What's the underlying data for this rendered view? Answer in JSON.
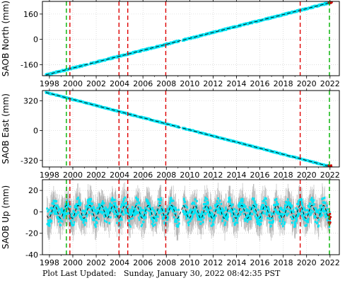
{
  "footer": {
    "label": "Plot Last Updated:",
    "value": "Sunday, January 30, 2022 08:42:35 PST"
  },
  "chart_data": [
    {
      "type": "scatter",
      "ylabel": "SAOB North (mm)",
      "xlim": [
        1997.4,
        2022.8
      ],
      "ylim": [
        -230,
        240
      ],
      "yticks": [
        -160,
        0,
        160
      ],
      "xticks": [
        1998,
        2000,
        2002,
        2004,
        2006,
        2008,
        2010,
        2012,
        2014,
        2016,
        2018,
        2020,
        2022
      ],
      "trend": [
        [
          1997.7,
          -225
        ],
        [
          2022.0,
          232
        ]
      ],
      "gaps": [
        [
          2001.3,
          2001.5
        ],
        [
          2009.1,
          2009.4
        ]
      ],
      "scatter_half_width": 5,
      "green_lines": [
        1999.45,
        2021.95
      ],
      "red_lines": [
        1999.75,
        2003.95,
        2004.7,
        2007.95,
        2019.45
      ],
      "grid": true
    },
    {
      "type": "scatter",
      "ylabel": "SAOB East (mm)",
      "xlim": [
        1997.4,
        2022.8
      ],
      "ylim": [
        -390,
        430
      ],
      "yticks": [
        -320,
        0,
        320
      ],
      "xticks": [
        1998,
        2000,
        2002,
        2004,
        2006,
        2008,
        2010,
        2012,
        2014,
        2016,
        2018,
        2020,
        2022
      ],
      "trend": [
        [
          1997.7,
          410
        ],
        [
          2022.0,
          -385
        ]
      ],
      "gaps": [
        [
          2009.1,
          2009.4
        ]
      ],
      "scatter_half_width": 6,
      "green_lines": [
        1999.45,
        2021.95
      ],
      "red_lines": [
        1999.75,
        2003.95,
        2004.7,
        2007.95,
        2019.45
      ],
      "grid": true
    },
    {
      "type": "scatter",
      "ylabel": "SAOB Up (mm)",
      "xlim": [
        1997.4,
        2022.8
      ],
      "ylim": [
        -40,
        30
      ],
      "yticks": [
        -40,
        -20,
        0,
        20
      ],
      "xticks": [
        1998,
        2000,
        2002,
        2004,
        2006,
        2008,
        2010,
        2012,
        2014,
        2016,
        2018,
        2020,
        2022
      ],
      "trend_mean": 0,
      "seasonal_amplitude": 6,
      "gaps": [
        [
          2009.1,
          2009.4
        ]
      ],
      "green_lines": [
        1999.45,
        2021.95
      ],
      "red_lines": [
        1999.75,
        2003.95,
        2004.7,
        2007.95,
        2019.45
      ],
      "grid": true
    }
  ]
}
